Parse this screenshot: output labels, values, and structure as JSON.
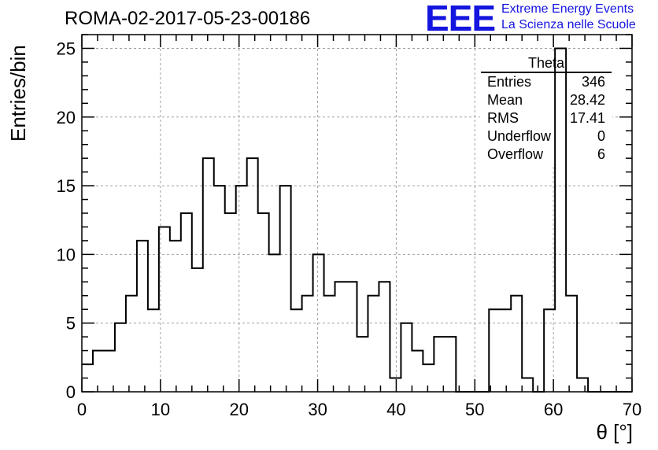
{
  "colors": {
    "accent": "#1515e0",
    "axis": "#000000",
    "grid": "#a0a0a0"
  },
  "header": {
    "title": "ROMA-02-2017-05-23-00186",
    "logo": "EEE",
    "logo_line1": "Extreme Energy Events",
    "logo_line2": "La Scienza nelle Scuole"
  },
  "stats": {
    "title": "Theta",
    "rows": [
      {
        "label": "Entries",
        "value": "346"
      },
      {
        "label": "Mean",
        "value": "28.42"
      },
      {
        "label": "RMS",
        "value": "17.41"
      },
      {
        "label": "Underflow",
        "value": "0"
      },
      {
        "label": "Overflow",
        "value": "6"
      }
    ]
  },
  "chart_data": {
    "type": "bar",
    "histogram": true,
    "title": "ROMA-02-2017-05-23-00186",
    "xlabel": "θ [°]",
    "ylabel": "Entries/bin",
    "xlim": [
      0,
      70
    ],
    "ylim": [
      0,
      26
    ],
    "grid": true,
    "xticks": [
      0,
      10,
      20,
      30,
      40,
      50,
      60,
      70
    ],
    "yticks": [
      0,
      5,
      10,
      15,
      20,
      25
    ],
    "bin_start": 0,
    "bin_width": 1.4,
    "values": [
      2,
      3,
      3,
      5,
      7,
      11,
      6,
      12,
      11,
      13,
      9,
      17,
      15,
      13,
      15,
      17,
      13,
      10,
      15,
      6,
      7,
      10,
      7,
      8,
      8,
      4,
      7,
      8,
      1,
      5,
      3,
      2,
      4,
      4,
      0,
      0,
      0,
      6,
      6,
      7,
      1,
      0,
      6,
      25,
      7,
      1,
      0,
      0,
      0,
      0
    ]
  }
}
